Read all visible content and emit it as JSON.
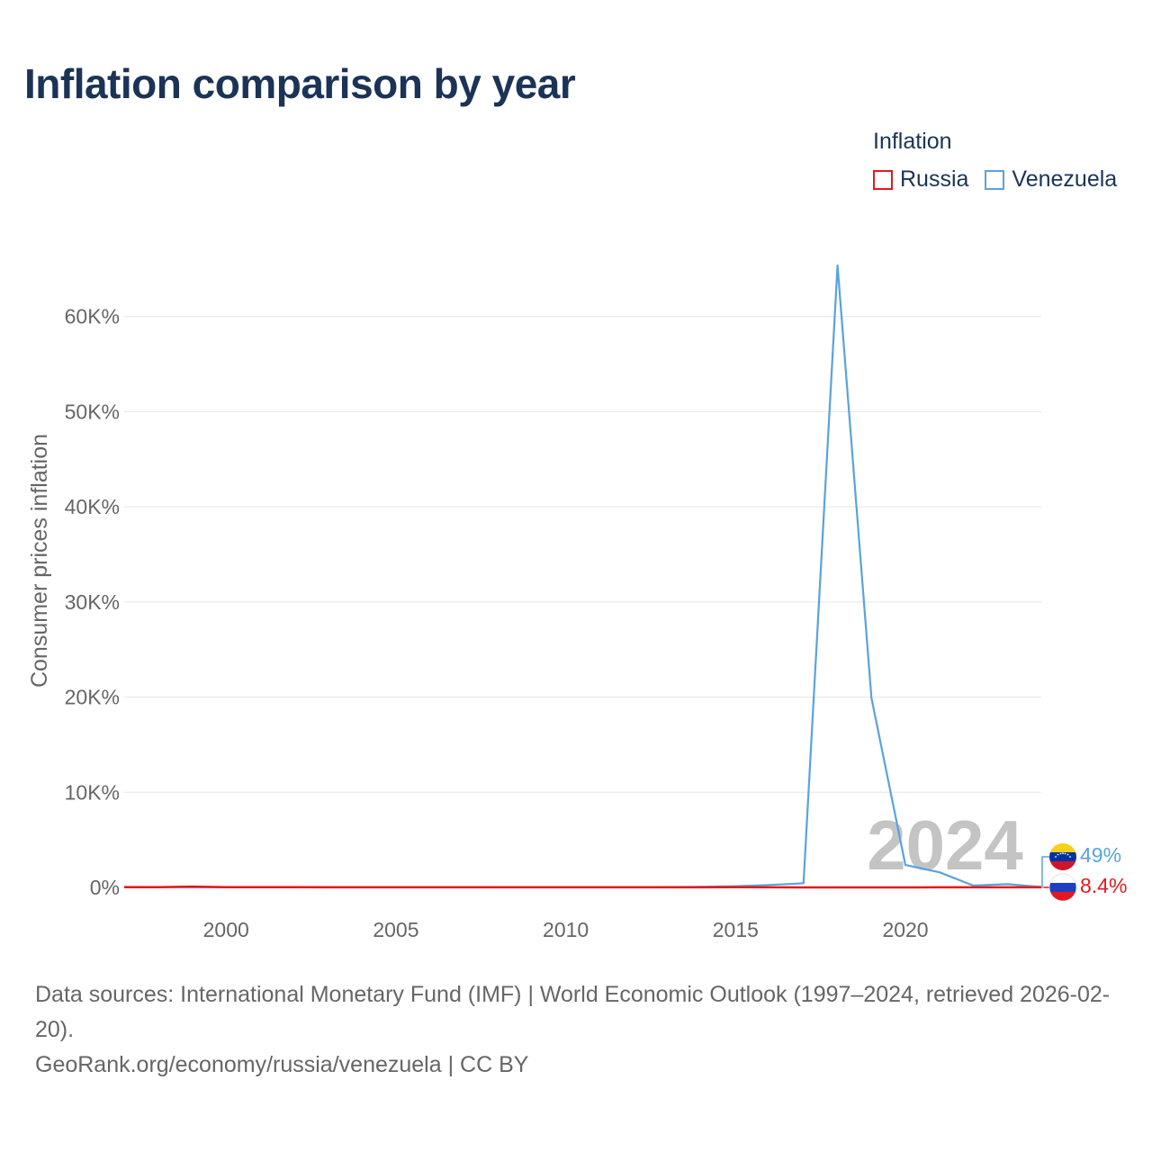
{
  "title": "Inflation comparison by year",
  "legend": {
    "title": "Inflation",
    "items": [
      {
        "label": "Russia",
        "color": "#e31a1c"
      },
      {
        "label": "Venezuela",
        "color": "#5aa2e0"
      }
    ]
  },
  "watermark_year": "2024",
  "end_labels": {
    "venezuela": {
      "text": "49%",
      "color": "#5aa2e0",
      "icon": "venezuela-flag-icon"
    },
    "russia": {
      "text": "8.4%",
      "color": "#e31a1c",
      "icon": "russia-flag-icon"
    }
  },
  "footer": {
    "sources": "Data sources: International Monetary Fund (IMF) | World Economic Outlook (1997–2024, retrieved 2026-02-20).",
    "site": "GeoRank.org/economy/russia/venezuela | CC BY"
  },
  "chart_data": {
    "type": "line",
    "title": "Inflation comparison by year",
    "ylabel": "Consumer prices inflation",
    "xlabel": "",
    "x": [
      1997,
      1998,
      1999,
      2000,
      2001,
      2002,
      2003,
      2004,
      2005,
      2006,
      2007,
      2008,
      2009,
      2010,
      2011,
      2012,
      2013,
      2014,
      2015,
      2016,
      2017,
      2018,
      2019,
      2020,
      2021,
      2022,
      2023,
      2024
    ],
    "series": [
      {
        "name": "Russia",
        "color": "#e31a1c",
        "values": [
          14.8,
          27.7,
          85.7,
          20.8,
          21.5,
          15.8,
          13.7,
          10.9,
          12.7,
          9.7,
          9.0,
          14.1,
          11.7,
          6.9,
          8.4,
          5.1,
          6.8,
          7.8,
          15.5,
          7.0,
          3.7,
          2.9,
          4.5,
          3.4,
          6.7,
          13.8,
          5.9,
          8.4
        ]
      },
      {
        "name": "Venezuela",
        "color": "#5aa2e0",
        "values": [
          50.0,
          35.8,
          23.6,
          16.2,
          12.5,
          22.4,
          31.1,
          21.7,
          16.0,
          13.7,
          18.7,
          31.4,
          26.0,
          28.2,
          26.1,
          21.1,
          40.6,
          62.2,
          121.7,
          254.9,
          438.1,
          65374,
          19906,
          2355,
          1588,
          186,
          337,
          49
        ]
      }
    ],
    "xticks": [
      2000,
      2005,
      2010,
      2015,
      2020
    ],
    "yticks": [
      0,
      10000,
      20000,
      30000,
      40000,
      50000,
      60000
    ],
    "ytick_labels": [
      "0%",
      "10K%",
      "20K%",
      "30K%",
      "40K%",
      "50K%",
      "60K%"
    ],
    "xlim": [
      1997,
      2024
    ],
    "ylim": [
      0,
      70000
    ],
    "grid": true,
    "legend_position": "top-right"
  }
}
